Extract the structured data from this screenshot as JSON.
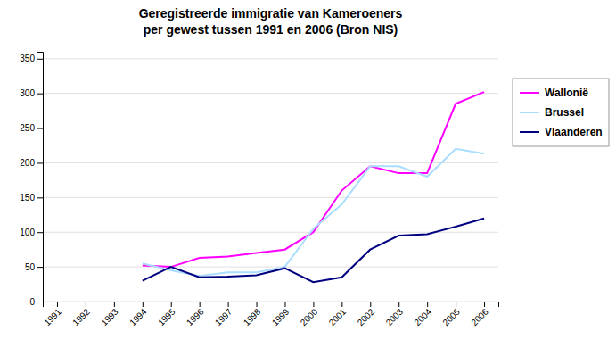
{
  "chart_data": {
    "type": "line",
    "title": "Geregistreerde immigratie van Kameroeners\nper gewest tussen 1991 en 2006 (Bron NIS)",
    "x": [
      1991,
      1992,
      1993,
      1994,
      1995,
      1996,
      1997,
      1998,
      1999,
      2000,
      2001,
      2002,
      2003,
      2004,
      2005,
      2006
    ],
    "series": [
      {
        "name": "Wallonië",
        "color": "#ff00ff",
        "values": [
          null,
          null,
          null,
          52,
          50,
          63,
          65,
          70,
          75,
          100,
          160,
          195,
          185,
          185,
          285,
          302
        ]
      },
      {
        "name": "Brussel",
        "color": "#aaddff",
        "values": [
          null,
          null,
          null,
          55,
          45,
          37,
          42,
          42,
          50,
          105,
          140,
          195,
          195,
          180,
          220,
          213
        ]
      },
      {
        "name": "Vlaanderen",
        "color": "#000080",
        "values": [
          null,
          null,
          null,
          30,
          50,
          35,
          36,
          38,
          48,
          28,
          35,
          75,
          95,
          97,
          108,
          120
        ]
      }
    ],
    "xlim": [
      1990.5,
      2006.5
    ],
    "xticks": [
      1991,
      1992,
      1993,
      1994,
      1995,
      1996,
      1997,
      1998,
      1999,
      2000,
      2001,
      2002,
      2003,
      2004,
      2005,
      2006
    ],
    "ylim": [
      0,
      360
    ],
    "yticks": [
      0,
      50,
      100,
      150,
      200,
      250,
      300,
      350
    ],
    "grid": true,
    "legend": "right"
  }
}
